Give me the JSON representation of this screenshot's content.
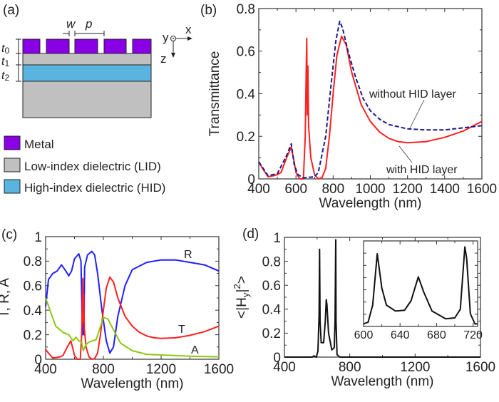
{
  "panel_a": {
    "label": "(a)",
    "dims": {
      "w": "w",
      "p": "p",
      "t0": "t",
      "t0_sub": "0",
      "t1": "t",
      "t1_sub": "1",
      "t2": "t",
      "t2_sub": "2"
    },
    "axes": {
      "y": "y",
      "x": "x",
      "z": "z"
    },
    "legend": [
      {
        "label": "Metal",
        "color": "#8a00e6"
      },
      {
        "label": "Low-index dielectric (LID)",
        "color": "#c0c0c0"
      },
      {
        "label": "High-index dielectric (HID)",
        "color": "#5ab4e0"
      }
    ]
  },
  "chart_data": [
    {
      "panel": "(b)",
      "type": "line",
      "xlabel": "Wavelength (nm)",
      "ylabel": "Transmittance",
      "xlim": [
        400,
        1600
      ],
      "ylim": [
        0,
        0.8
      ],
      "xticks": [
        "400",
        "600",
        "800",
        "1000",
        "1200",
        "1400",
        "1600"
      ],
      "yticks": [
        "0",
        "0.2",
        "0.4",
        "0.6",
        "0.8"
      ],
      "series": [
        {
          "name": "with HID layer",
          "color": "#ff2020",
          "style": "solid",
          "points": [
            [
              400,
              0.08
            ],
            [
              420,
              0.05
            ],
            [
              450,
              0.01
            ],
            [
              480,
              0.015
            ],
            [
              500,
              0.02
            ],
            [
              520,
              0.03
            ],
            [
              550,
              0.1
            ],
            [
              575,
              0.15
            ],
            [
              590,
              0.08
            ],
            [
              600,
              0.03
            ],
            [
              620,
              0
            ],
            [
              640,
              0
            ],
            [
              650,
              0.2
            ],
            [
              655,
              0.5
            ],
            [
              658,
              0.66
            ],
            [
              661,
              0.3
            ],
            [
              664,
              0.53
            ],
            [
              668,
              0.25
            ],
            [
              680,
              0.1
            ],
            [
              700,
              0.02
            ],
            [
              720,
              0
            ],
            [
              740,
              0.005
            ],
            [
              760,
              0.05
            ],
            [
              780,
              0.2
            ],
            [
              800,
              0.4
            ],
            [
              820,
              0.58
            ],
            [
              845,
              0.67
            ],
            [
              870,
              0.63
            ],
            [
              900,
              0.5
            ],
            [
              950,
              0.35
            ],
            [
              1000,
              0.27
            ],
            [
              1050,
              0.22
            ],
            [
              1100,
              0.19
            ],
            [
              1150,
              0.175
            ],
            [
              1200,
              0.17
            ],
            [
              1300,
              0.175
            ],
            [
              1400,
              0.195
            ],
            [
              1500,
              0.225
            ],
            [
              1600,
              0.27
            ]
          ]
        },
        {
          "name": "without HID layer",
          "color": "#1a1a8c",
          "style": "dashed",
          "points": [
            [
              400,
              0.08
            ],
            [
              450,
              0.015
            ],
            [
              500,
              0.025
            ],
            [
              550,
              0.11
            ],
            [
              575,
              0.165
            ],
            [
              590,
              0.07
            ],
            [
              610,
              0.02
            ],
            [
              640,
              0.005
            ],
            [
              700,
              0.01
            ],
            [
              720,
              0.03
            ],
            [
              760,
              0.2
            ],
            [
              790,
              0.45
            ],
            [
              815,
              0.65
            ],
            [
              835,
              0.74
            ],
            [
              850,
              0.71
            ],
            [
              880,
              0.6
            ],
            [
              920,
              0.48
            ],
            [
              960,
              0.38
            ],
            [
              1000,
              0.32
            ],
            [
              1050,
              0.28
            ],
            [
              1100,
              0.255
            ],
            [
              1200,
              0.235
            ],
            [
              1300,
              0.23
            ],
            [
              1400,
              0.23
            ],
            [
              1500,
              0.24
            ],
            [
              1600,
              0.25
            ]
          ]
        }
      ]
    },
    {
      "panel": "(c)",
      "type": "line",
      "xlabel": "Wavelength (nm)",
      "ylabel": "T, R, A",
      "xlim": [
        400,
        1600
      ],
      "ylim": [
        0,
        1
      ],
      "xticks": [
        "400",
        "800",
        "1200",
        "1600"
      ],
      "yticks": [
        "0",
        "0.2",
        "0.4",
        "0.6",
        "0.8",
        "1"
      ],
      "series": [
        {
          "name": "R",
          "color": "#2020ff",
          "style": "solid",
          "points": [
            [
              400,
              0.43
            ],
            [
              420,
              0.65
            ],
            [
              450,
              0.7
            ],
            [
              480,
              0.72
            ],
            [
              510,
              0.77
            ],
            [
              540,
              0.72
            ],
            [
              560,
              0.68
            ],
            [
              580,
              0.72
            ],
            [
              600,
              0.82
            ],
            [
              630,
              0.86
            ],
            [
              645,
              0.8
            ],
            [
              655,
              0.2
            ],
            [
              660,
              0.5
            ],
            [
              665,
              0.2
            ],
            [
              670,
              0.75
            ],
            [
              690,
              0.85
            ],
            [
              720,
              0.88
            ],
            [
              740,
              0.85
            ],
            [
              760,
              0.7
            ],
            [
              790,
              0.4
            ],
            [
              820,
              0.15
            ],
            [
              845,
              0.05
            ],
            [
              870,
              0.1
            ],
            [
              900,
              0.35
            ],
            [
              950,
              0.6
            ],
            [
              1000,
              0.73
            ],
            [
              1100,
              0.79
            ],
            [
              1200,
              0.81
            ],
            [
              1300,
              0.81
            ],
            [
              1400,
              0.79
            ],
            [
              1500,
              0.77
            ],
            [
              1600,
              0.72
            ]
          ]
        },
        {
          "name": "T",
          "color": "#ff2020",
          "style": "solid",
          "points": [
            [
              400,
              0.08
            ],
            [
              420,
              0.05
            ],
            [
              450,
              0.01
            ],
            [
              480,
              0.015
            ],
            [
              500,
              0.02
            ],
            [
              520,
              0.03
            ],
            [
              550,
              0.1
            ],
            [
              575,
              0.15
            ],
            [
              590,
              0.08
            ],
            [
              600,
              0.03
            ],
            [
              620,
              0
            ],
            [
              640,
              0
            ],
            [
              650,
              0.2
            ],
            [
              655,
              0.5
            ],
            [
              658,
              0.66
            ],
            [
              661,
              0.3
            ],
            [
              664,
              0.53
            ],
            [
              668,
              0.25
            ],
            [
              680,
              0.1
            ],
            [
              700,
              0.02
            ],
            [
              720,
              0
            ],
            [
              740,
              0.005
            ],
            [
              760,
              0.05
            ],
            [
              780,
              0.2
            ],
            [
              800,
              0.4
            ],
            [
              820,
              0.58
            ],
            [
              845,
              0.67
            ],
            [
              870,
              0.63
            ],
            [
              900,
              0.5
            ],
            [
              950,
              0.35
            ],
            [
              1000,
              0.27
            ],
            [
              1050,
              0.22
            ],
            [
              1100,
              0.19
            ],
            [
              1150,
              0.175
            ],
            [
              1200,
              0.17
            ],
            [
              1300,
              0.175
            ],
            [
              1400,
              0.195
            ],
            [
              1500,
              0.225
            ],
            [
              1600,
              0.27
            ]
          ]
        },
        {
          "name": "A",
          "color": "#8cc814",
          "style": "solid",
          "points": [
            [
              400,
              0.5
            ],
            [
              430,
              0.4
            ],
            [
              470,
              0.27
            ],
            [
              520,
              0.22
            ],
            [
              560,
              0.2
            ],
            [
              590,
              0.15
            ],
            [
              610,
              0.18
            ],
            [
              630,
              0.15
            ],
            [
              650,
              0.14
            ],
            [
              660,
              0.07
            ],
            [
              680,
              0.12
            ],
            [
              700,
              0.14
            ],
            [
              750,
              0.16
            ],
            [
              800,
              0.34
            ],
            [
              830,
              0.33
            ],
            [
              870,
              0.24
            ],
            [
              920,
              0.13
            ],
            [
              1000,
              0.07
            ],
            [
              1100,
              0.04
            ],
            [
              1200,
              0.035
            ],
            [
              1400,
              0.025
            ],
            [
              1600,
              0.02
            ]
          ]
        }
      ]
    },
    {
      "panel": "(d)",
      "type": "line",
      "xlabel": "Wavelength (nm)",
      "ylabel": "<|Hy|²>",
      "ylabel_parts": {
        "pre": "<|H",
        "sub": "y",
        "mid": "|",
        "sup": "2",
        "post": ">"
      },
      "xlim": [
        400,
        1600
      ],
      "ylim": [
        0,
        1
      ],
      "xticks": [
        "400",
        "800",
        "1200",
        "1600"
      ],
      "yticks": [
        "0",
        "0.2",
        "0.4",
        "0.6",
        "0.8",
        "1"
      ],
      "series": [
        {
          "color": "#111111",
          "style": "solid",
          "points": [
            [
              400,
              0
            ],
            [
              570,
              0
            ],
            [
              580,
              0.01
            ],
            [
              595,
              0
            ],
            [
              605,
              0.05
            ],
            [
              612,
              0.35
            ],
            [
              615,
              0.9
            ],
            [
              618,
              0.3
            ],
            [
              625,
              0.12
            ],
            [
              640,
              0.12
            ],
            [
              650,
              0.3
            ],
            [
              656,
              0.48
            ],
            [
              660,
              0.44
            ],
            [
              670,
              0.2
            ],
            [
              690,
              0.06
            ],
            [
              705,
              0.08
            ],
            [
              710,
              0.3
            ],
            [
              714,
              0.98
            ],
            [
              716,
              0.3
            ],
            [
              722,
              0.02
            ],
            [
              740,
              0
            ],
            [
              1600,
              0
            ]
          ]
        }
      ]
    },
    {
      "panel": "(d) inset",
      "type": "line",
      "xlim": [
        600,
        725
      ],
      "ylim": [
        0,
        1
      ],
      "xticks": [
        "600",
        "640",
        "680",
        "720"
      ],
      "series": [
        {
          "color": "#111111",
          "style": "solid",
          "points": [
            [
              600,
              0.03
            ],
            [
              605,
              0.05
            ],
            [
              610,
              0.25
            ],
            [
              615,
              0.85
            ],
            [
              620,
              0.45
            ],
            [
              625,
              0.25
            ],
            [
              635,
              0.18
            ],
            [
              645,
              0.19
            ],
            [
              652,
              0.3
            ],
            [
              660,
              0.58
            ],
            [
              666,
              0.4
            ],
            [
              675,
              0.18
            ],
            [
              690,
              0.09
            ],
            [
              700,
              0.1
            ],
            [
              706,
              0.2
            ],
            [
              711,
              0.93
            ],
            [
              713,
              0.8
            ],
            [
              717,
              0.15
            ],
            [
              722,
              0.03
            ],
            [
              725,
              0.03
            ]
          ]
        }
      ]
    }
  ],
  "annotations": {
    "b_without": "without HID layer",
    "b_with": "with HID layer"
  }
}
